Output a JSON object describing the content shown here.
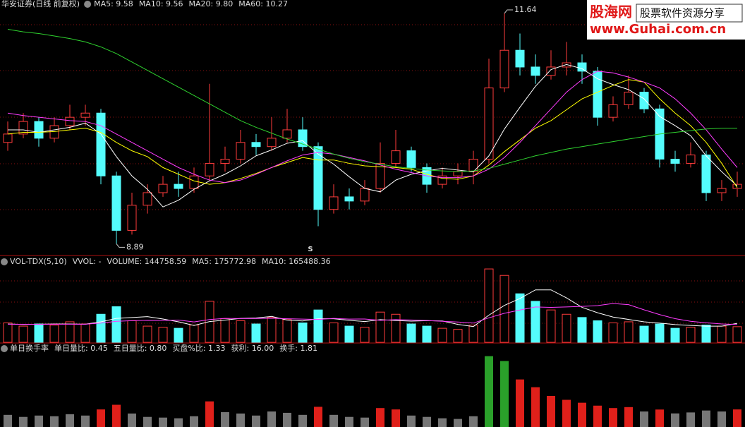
{
  "chart_data": [
    {
      "type": "candlestick",
      "title": "华安证券(日线 前复权)",
      "up_color": "#ff3c3c",
      "down_color": "#54fcfc",
      "ylim": [
        8.75,
        11.8
      ],
      "open": [
        10.1,
        10.2,
        10.35,
        10.15,
        10.3,
        10.4,
        10.45,
        9.7,
        9.05,
        9.35,
        9.5,
        9.6,
        9.55,
        9.7,
        9.85,
        9.9,
        10.1,
        10.05,
        10.15,
        10.25,
        10.05,
        9.3,
        9.45,
        9.4,
        9.55,
        9.85,
        10.0,
        9.8,
        9.6,
        9.7,
        9.75,
        9.9,
        10.75,
        11.2,
        11.0,
        10.9,
        11.0,
        11.05,
        10.95,
        10.4,
        10.55,
        10.7,
        10.5,
        9.9,
        9.85,
        9.95,
        9.5,
        9.55
      ],
      "high": [
        10.35,
        10.45,
        10.4,
        10.4,
        10.55,
        10.55,
        10.5,
        9.75,
        9.5,
        9.6,
        9.7,
        9.75,
        9.8,
        10.8,
        10.05,
        10.25,
        10.2,
        10.4,
        10.5,
        10.4,
        10.1,
        9.6,
        9.55,
        9.65,
        10.1,
        10.25,
        10.05,
        9.85,
        9.8,
        9.85,
        10.0,
        11.1,
        11.64,
        11.4,
        11.15,
        11.2,
        11.3,
        11.15,
        11.0,
        10.65,
        10.9,
        10.75,
        10.55,
        10.0,
        10.1,
        10.0,
        9.65,
        9.75
      ],
      "low": [
        10.0,
        10.15,
        10.05,
        10.1,
        10.25,
        10.3,
        9.6,
        8.89,
        9.0,
        9.25,
        9.45,
        9.45,
        9.5,
        9.65,
        9.75,
        9.85,
        9.95,
        10.0,
        10.1,
        10.0,
        9.1,
        9.25,
        9.3,
        9.35,
        9.5,
        9.8,
        9.75,
        9.5,
        9.55,
        9.6,
        9.6,
        9.85,
        10.7,
        10.9,
        10.8,
        10.85,
        10.9,
        10.8,
        10.3,
        10.35,
        10.5,
        10.45,
        9.8,
        9.75,
        9.8,
        9.4,
        9.4,
        9.45
      ],
      "close": [
        10.2,
        10.35,
        10.15,
        10.3,
        10.4,
        10.45,
        9.7,
        9.05,
        9.35,
        9.5,
        9.6,
        9.55,
        9.7,
        9.85,
        9.9,
        10.1,
        10.05,
        10.15,
        10.25,
        10.05,
        9.3,
        9.45,
        9.4,
        9.55,
        9.85,
        10.0,
        9.8,
        9.6,
        9.7,
        9.75,
        9.9,
        10.75,
        11.2,
        11.0,
        10.9,
        11.0,
        11.05,
        10.95,
        10.4,
        10.55,
        10.7,
        10.5,
        9.9,
        9.85,
        9.95,
        9.5,
        9.55,
        9.6
      ],
      "series": [
        {
          "name": "MA5: 9.58",
          "color": "#ffffff",
          "values": [
            10.25,
            10.25,
            10.22,
            10.25,
            10.28,
            10.33,
            10.2,
            9.93,
            9.7,
            9.54,
            9.33,
            9.41,
            9.54,
            9.64,
            9.72,
            9.82,
            9.94,
            10.01,
            10.09,
            10.12,
            9.96,
            9.84,
            9.69,
            9.55,
            9.51,
            9.65,
            9.72,
            9.76,
            9.79,
            9.77,
            9.75,
            9.94,
            10.26,
            10.52,
            10.77,
            10.97,
            11.03,
            10.98,
            10.86,
            10.79,
            10.73,
            10.62,
            10.41,
            10.3,
            10.18,
            9.94,
            9.75,
            9.58
          ]
        },
        {
          "name": "MA10: 9.56",
          "color": "#ffff00",
          "values": [
            10.2,
            10.22,
            10.22,
            10.23,
            10.25,
            10.27,
            10.22,
            10.1,
            10.0,
            9.93,
            9.8,
            9.72,
            9.64,
            9.6,
            9.62,
            9.67,
            9.73,
            9.8,
            9.86,
            9.92,
            9.89,
            9.89,
            9.85,
            9.82,
            9.81,
            9.8,
            9.78,
            9.72,
            9.67,
            9.66,
            9.7,
            9.83,
            9.99,
            10.13,
            10.27,
            10.36,
            10.49,
            10.62,
            10.7,
            10.78,
            10.85,
            10.82,
            10.62,
            10.45,
            10.3,
            10.1,
            9.85,
            9.56
          ]
        },
        {
          "name": "MA20: 9.80",
          "color": "#ff3cff",
          "values": [
            10.45,
            10.42,
            10.4,
            10.38,
            10.36,
            10.35,
            10.3,
            10.2,
            10.1,
            10.0,
            9.9,
            9.8,
            9.72,
            9.65,
            9.62,
            9.65,
            9.72,
            9.8,
            9.88,
            9.95,
            9.98,
            9.96,
            9.92,
            9.88,
            9.83,
            9.78,
            9.74,
            9.7,
            9.68,
            9.68,
            9.7,
            9.78,
            9.92,
            10.1,
            10.3,
            10.5,
            10.7,
            10.85,
            10.95,
            10.93,
            10.88,
            10.82,
            10.75,
            10.62,
            10.45,
            10.25,
            10.02,
            9.8
          ]
        },
        {
          "name": "MA60: 10.27",
          "color": "#2fd22f",
          "values": [
            11.45,
            11.42,
            11.4,
            11.37,
            11.34,
            11.3,
            11.24,
            11.16,
            11.06,
            10.96,
            10.86,
            10.76,
            10.66,
            10.56,
            10.46,
            10.36,
            10.28,
            10.21,
            10.14,
            10.08,
            10.02,
            9.96,
            9.91,
            9.87,
            9.84,
            9.81,
            9.79,
            9.77,
            9.76,
            9.75,
            9.76,
            9.79,
            9.84,
            9.89,
            9.94,
            9.98,
            10.02,
            10.05,
            10.08,
            10.11,
            10.14,
            10.17,
            10.2,
            10.22,
            10.24,
            10.26,
            10.27,
            10.27
          ]
        }
      ],
      "high_label": 11.64,
      "low_label": 8.89,
      "signal": "S"
    },
    {
      "type": "volume",
      "title": "VOL-TDX(5,10)",
      "ylim": [
        0,
        700000
      ],
      "legend": [
        {
          "text": "VVOL: -",
          "color": "#dddddd"
        },
        {
          "text": "VOLUME: 144758.59",
          "color": "#ffff00"
        }
      ],
      "values": [
        180000,
        150000,
        170000,
        160000,
        190000,
        170000,
        260000,
        330000,
        200000,
        150000,
        140000,
        130000,
        160000,
        380000,
        220000,
        200000,
        170000,
        230000,
        210000,
        180000,
        300000,
        180000,
        150000,
        140000,
        280000,
        260000,
        170000,
        150000,
        130000,
        120000,
        160000,
        680000,
        620000,
        450000,
        380000,
        300000,
        260000,
        230000,
        200000,
        180000,
        190000,
        150000,
        170000,
        130000,
        140000,
        160000,
        150000,
        144758.59
      ],
      "series": [
        {
          "name": "MA5: 175772.98",
          "color": "#ffffff",
          "values": [
            170000,
            165000,
            168000,
            170000,
            170000,
            168000,
            190000,
            222000,
            230000,
            238000,
            216000,
            190000,
            156000,
            192000,
            206000,
            222000,
            226000,
            240000,
            206000,
            198000,
            218000,
            218000,
            204000,
            192000,
            210000,
            202000,
            196000,
            200000,
            198000,
            166000,
            146000,
            252000,
            342000,
            406000,
            486000,
            486000,
            412000,
            324000,
            274000,
            234000,
            212000,
            190000,
            178000,
            164000,
            156000,
            150000,
            150000,
            175772.98
          ]
        },
        {
          "name": "MA10: 165488.36",
          "color": "#ff3cff",
          "values": [
            168000,
            167000,
            167000,
            168000,
            168000,
            168000,
            178000,
            195000,
            200000,
            204000,
            203000,
            206000,
            189000,
            211000,
            222000,
            220000,
            221000,
            223000,
            218000,
            215000,
            212000,
            222000,
            215000,
            216000,
            204000,
            210000,
            207000,
            202000,
            195000,
            188000,
            178000,
            227000,
            269000,
            299000,
            328000,
            324000,
            328000,
            333000,
            340000,
            360000,
            349000,
            301000,
            257000,
            219000,
            195000,
            181000,
            170000,
            165488.36
          ]
        }
      ]
    },
    {
      "type": "turnover",
      "title": "单日换手率",
      "ylim": [
        0,
        8
      ],
      "legend": [
        {
          "text": "单日量比: 0.45",
          "color": "#ffff00"
        },
        {
          "text": "五日量比: 0.80",
          "color": "#ff3cff"
        },
        {
          "text": "买盘%比: 1.33",
          "color": "#54fcfc"
        },
        {
          "text": "获利: 16.00",
          "color": "#dddddd"
        },
        {
          "text": "换手: 1.81",
          "color": "#ffff00"
        }
      ],
      "values": [
        1.25,
        1.04,
        1.18,
        1.11,
        1.32,
        1.18,
        1.81,
        2.29,
        1.39,
        1.04,
        0.97,
        0.9,
        1.11,
        2.64,
        1.53,
        1.39,
        1.18,
        1.6,
        1.46,
        1.25,
        2.08,
        1.25,
        1.04,
        0.97,
        1.95,
        1.81,
        1.18,
        1.04,
        0.9,
        0.83,
        1.11,
        7.3,
        6.8,
        4.9,
        4.1,
        3.2,
        2.8,
        2.5,
        2.2,
        1.95,
        2.05,
        1.6,
        1.8,
        1.4,
        1.5,
        1.7,
        1.6,
        1.81
      ],
      "colors": [
        "#777",
        "#777",
        "#777",
        "#777",
        "#777",
        "#777",
        "#e0201a",
        "#e0201a",
        "#777",
        "#777",
        "#777",
        "#777",
        "#777",
        "#e0201a",
        "#777",
        "#777",
        "#777",
        "#777",
        "#777",
        "#777",
        "#e0201a",
        "#777",
        "#777",
        "#777",
        "#e0201a",
        "#e0201a",
        "#777",
        "#777",
        "#777",
        "#777",
        "#777",
        "#2aa02a",
        "#2aa02a",
        "#e0201a",
        "#e0201a",
        "#e0201a",
        "#e0201a",
        "#e0201a",
        "#e0201a",
        "#e0201a",
        "#e0201a",
        "#777",
        "#e0201a",
        "#777",
        "#777",
        "#777",
        "#777",
        "#e0201a"
      ]
    }
  ],
  "watermark": {
    "logo": "股海网",
    "slogan": "股票软件资源分享",
    "url": "www.Guhai.com.cn"
  }
}
